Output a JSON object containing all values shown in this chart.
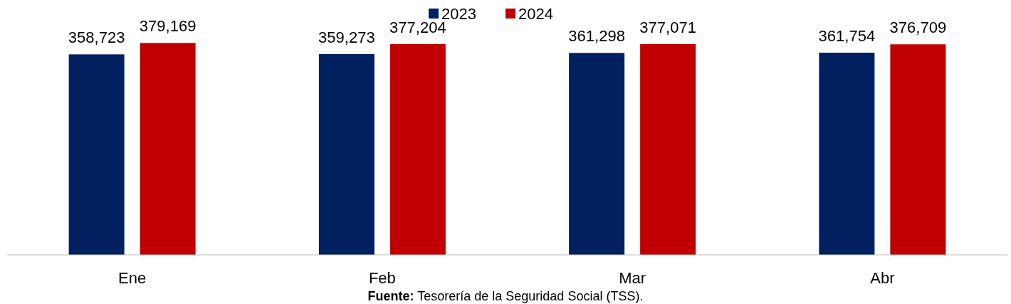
{
  "chart_data": {
    "type": "bar",
    "categories": [
      "Ene",
      "Feb",
      "Mar",
      "Abr"
    ],
    "series": [
      {
        "name": "2023",
        "color": "#002060",
        "values": [
          358723,
          359273,
          361298,
          361754
        ],
        "value_labels": [
          "358,723",
          "359,273",
          "361,298",
          "361,754"
        ]
      },
      {
        "name": "2024",
        "color": "#c00000",
        "values": [
          379169,
          377204,
          377071,
          376709
        ],
        "value_labels": [
          "379,169",
          "377,204",
          "377,071",
          "376,709"
        ]
      }
    ],
    "legend": "top",
    "grid": false,
    "annotations": [
      "Fuente: Tesorería de la Seguridad Social (TSS)."
    ]
  }
}
